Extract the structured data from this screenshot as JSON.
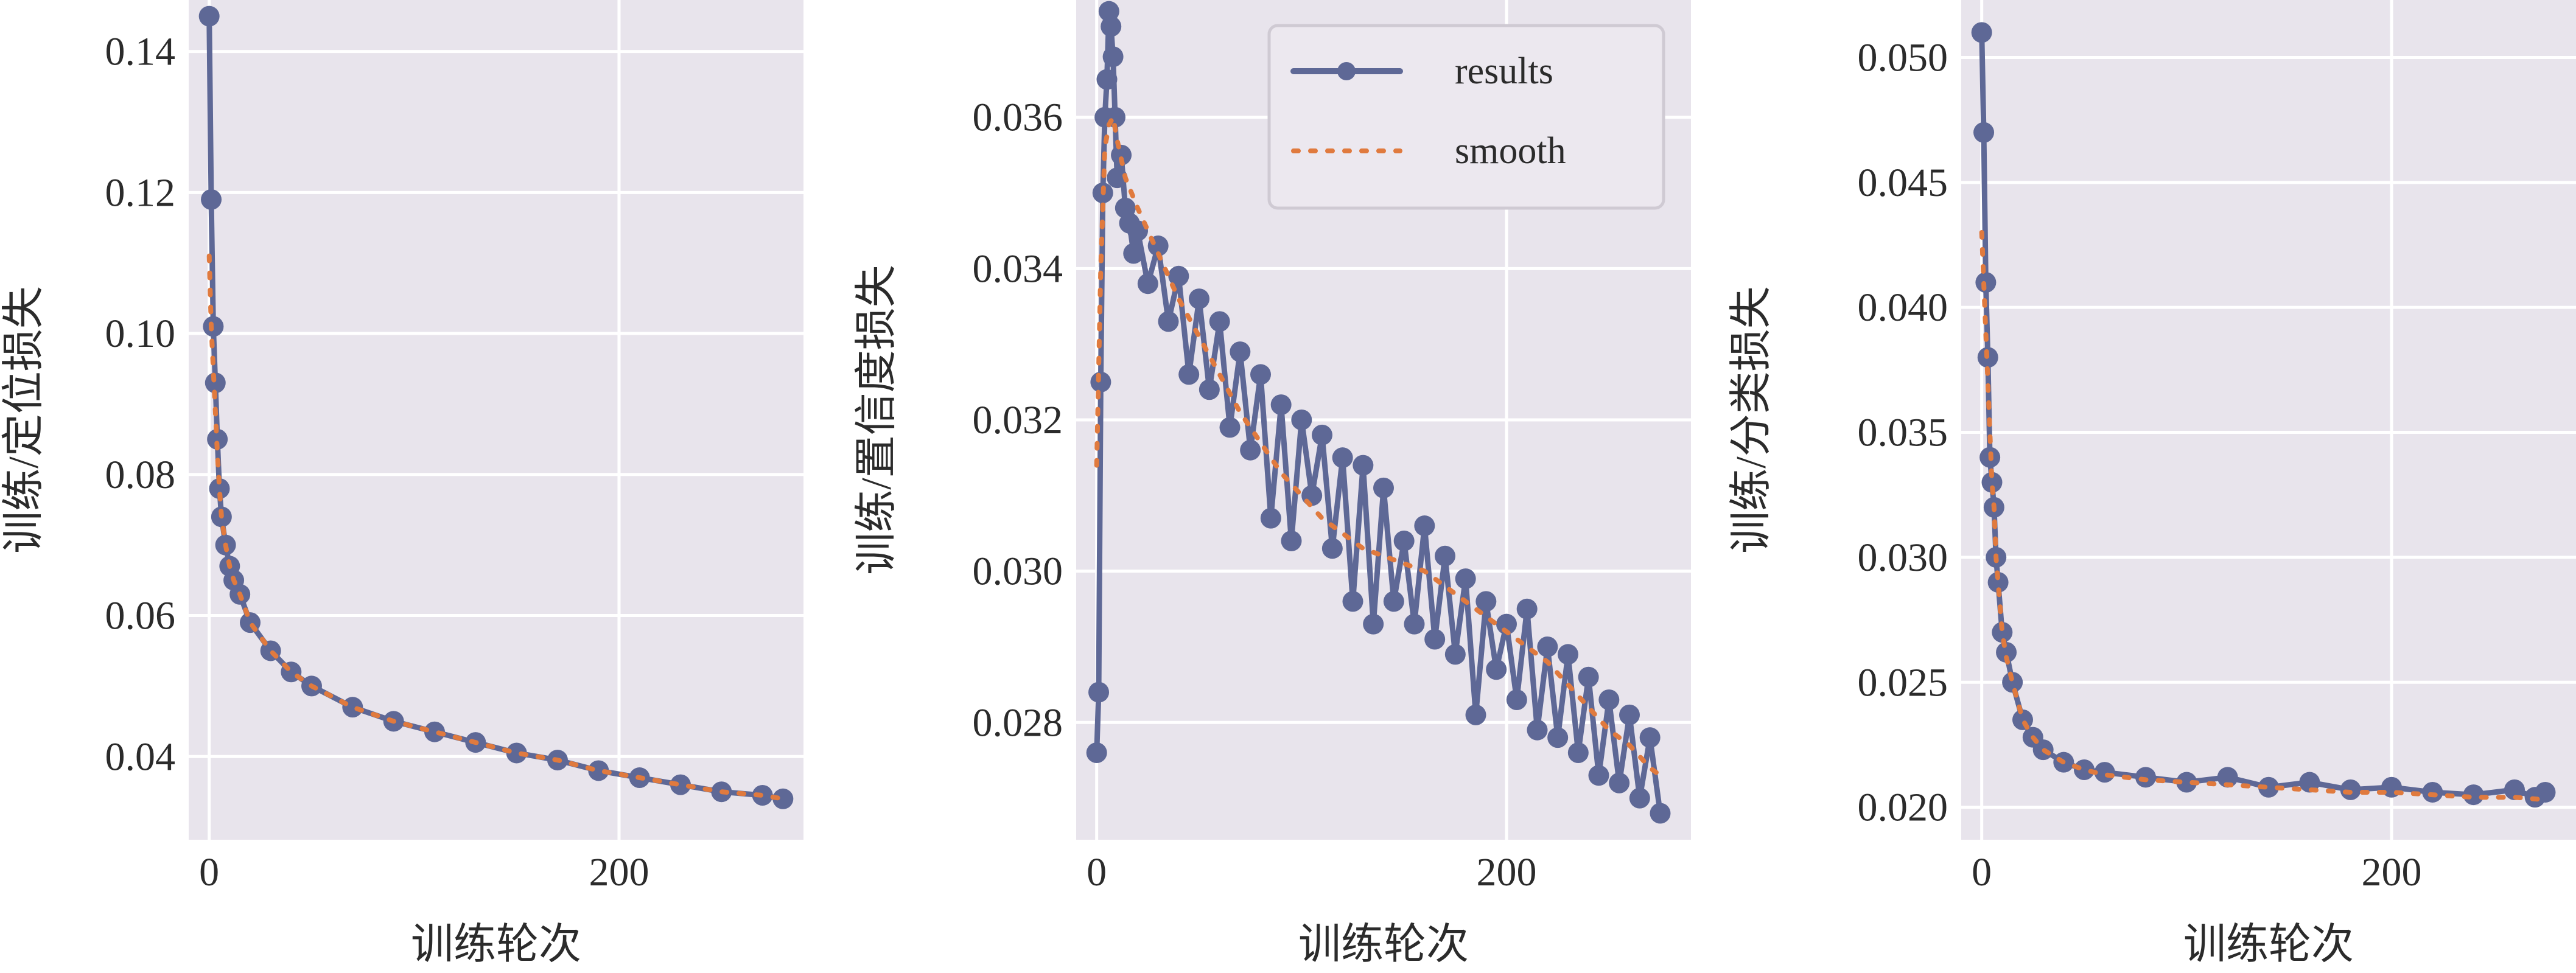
{
  "colors": {
    "plot_bg": "#e8e4ec",
    "grid": "#ffffff",
    "results": "#5e6896",
    "smooth": "#e07a3e",
    "legend_bg": "#ece8ef",
    "legend_border": "#cfcad3"
  },
  "legend": {
    "results": "results",
    "smooth": "smooth"
  },
  "chart_data": [
    {
      "type": "line",
      "title": "",
      "xlabel": "训练轮次",
      "ylabel": "训练/定位损失",
      "xlim": [
        -10,
        290
      ],
      "ylim": [
        0.0282,
        0.1473
      ],
      "xticks": [
        0,
        200
      ],
      "xtick_labels": [
        "0",
        "200"
      ],
      "yticks": [
        0.04,
        0.06,
        0.08,
        0.1,
        0.12,
        0.14
      ],
      "ytick_labels": [
        "0.04",
        "0.06",
        "0.08",
        "0.10",
        "0.12",
        "0.14"
      ],
      "grid": true,
      "legend": "none",
      "series": [
        {
          "name": "results",
          "x": [
            0,
            1,
            2,
            3,
            4,
            5,
            6,
            8,
            10,
            12,
            15,
            20,
            30,
            40,
            50,
            70,
            90,
            110,
            130,
            150,
            170,
            190,
            210,
            230,
            250,
            270,
            280
          ],
          "y": [
            0.145,
            0.119,
            0.101,
            0.093,
            0.085,
            0.078,
            0.074,
            0.07,
            0.067,
            0.065,
            0.063,
            0.059,
            0.055,
            0.052,
            0.05,
            0.047,
            0.045,
            0.0435,
            0.042,
            0.0405,
            0.0395,
            0.038,
            0.037,
            0.036,
            0.035,
            0.0345,
            0.034
          ]
        },
        {
          "name": "smooth",
          "x": [
            0,
            1,
            2,
            3,
            4,
            5,
            6,
            8,
            10,
            12,
            15,
            20,
            30,
            40,
            50,
            70,
            90,
            110,
            130,
            150,
            170,
            190,
            210,
            230,
            250,
            270,
            280
          ],
          "y": [
            0.111,
            0.101,
            0.095,
            0.089,
            0.083,
            0.078,
            0.074,
            0.07,
            0.067,
            0.065,
            0.063,
            0.059,
            0.055,
            0.052,
            0.05,
            0.047,
            0.045,
            0.0435,
            0.042,
            0.0405,
            0.0395,
            0.038,
            0.037,
            0.036,
            0.035,
            0.0345,
            0.034
          ]
        }
      ]
    },
    {
      "type": "line",
      "title": "",
      "xlabel": "训练轮次",
      "ylabel": "训练/置信度损失",
      "xlim": [
        -10,
        290
      ],
      "ylim": [
        0.02645,
        0.03755
      ],
      "xticks": [
        0,
        200
      ],
      "xtick_labels": [
        "0",
        "200"
      ],
      "yticks": [
        0.028,
        0.03,
        0.032,
        0.034,
        0.036
      ],
      "ytick_labels": [
        "0.028",
        "0.030",
        "0.032",
        "0.034",
        "0.036"
      ],
      "grid": true,
      "legend": "top-right",
      "series": [
        {
          "name": "results",
          "x": [
            0,
            1,
            2,
            3,
            4,
            5,
            6,
            7,
            8,
            9,
            10,
            12,
            14,
            16,
            18,
            20,
            25,
            30,
            35,
            40,
            45,
            50,
            55,
            60,
            65,
            70,
            75,
            80,
            85,
            90,
            95,
            100,
            105,
            110,
            115,
            120,
            125,
            130,
            135,
            140,
            145,
            150,
            155,
            160,
            165,
            170,
            175,
            180,
            185,
            190,
            195,
            200,
            205,
            210,
            215,
            220,
            225,
            230,
            235,
            240,
            245,
            250,
            255,
            260,
            265,
            270,
            275
          ],
          "y": [
            0.0276,
            0.0284,
            0.0325,
            0.035,
            0.036,
            0.0365,
            0.0374,
            0.0372,
            0.0368,
            0.036,
            0.0352,
            0.0355,
            0.0348,
            0.0346,
            0.0342,
            0.0345,
            0.0338,
            0.0343,
            0.0333,
            0.0339,
            0.0326,
            0.0336,
            0.0324,
            0.0333,
            0.0319,
            0.0329,
            0.0316,
            0.0326,
            0.0307,
            0.0322,
            0.0304,
            0.032,
            0.031,
            0.0318,
            0.0303,
            0.0315,
            0.0296,
            0.0314,
            0.0293,
            0.0311,
            0.0296,
            0.0304,
            0.0293,
            0.0306,
            0.0291,
            0.0302,
            0.0289,
            0.0299,
            0.0281,
            0.0296,
            0.0287,
            0.0293,
            0.0283,
            0.0295,
            0.0279,
            0.029,
            0.0278,
            0.0289,
            0.0276,
            0.0286,
            0.0273,
            0.0283,
            0.0272,
            0.0281,
            0.027,
            0.0278,
            0.0268
          ]
        },
        {
          "name": "smooth",
          "x": [
            0,
            2,
            4,
            6,
            8,
            10,
            14,
            20,
            30,
            40,
            50,
            60,
            70,
            80,
            90,
            100,
            110,
            120,
            130,
            140,
            150,
            160,
            170,
            180,
            190,
            200,
            210,
            220,
            230,
            240,
            250,
            260,
            270,
            275
          ],
          "y": [
            0.0314,
            0.034,
            0.0356,
            0.0359,
            0.036,
            0.0357,
            0.0352,
            0.0348,
            0.0342,
            0.0336,
            0.0331,
            0.0326,
            0.0321,
            0.0317,
            0.0313,
            0.031,
            0.0307,
            0.0305,
            0.0303,
            0.0302,
            0.0301,
            0.03,
            0.0298,
            0.0296,
            0.0294,
            0.0292,
            0.029,
            0.0288,
            0.0285,
            0.0282,
            0.0279,
            0.0277,
            0.0274,
            0.0273
          ]
        }
      ]
    },
    {
      "type": "line",
      "title": "",
      "xlabel": "训练轮次",
      "ylabel": "训练/分类损失",
      "xlim": [
        -10,
        290
      ],
      "ylim": [
        0.0187,
        0.0523
      ],
      "xticks": [
        0,
        200
      ],
      "xtick_labels": [
        "0",
        "200"
      ],
      "yticks": [
        0.02,
        0.025,
        0.03,
        0.035,
        0.04,
        0.045,
        0.05
      ],
      "ytick_labels": [
        "0.020",
        "0.025",
        "0.030",
        "0.035",
        "0.040",
        "0.045",
        "0.050"
      ],
      "grid": true,
      "legend": "none",
      "series": [
        {
          "name": "results",
          "x": [
            0,
            1,
            2,
            3,
            4,
            5,
            6,
            7,
            8,
            10,
            12,
            15,
            20,
            25,
            30,
            40,
            50,
            60,
            80,
            100,
            120,
            140,
            160,
            180,
            200,
            220,
            240,
            260,
            270,
            275
          ],
          "y": [
            0.051,
            0.047,
            0.041,
            0.038,
            0.034,
            0.033,
            0.032,
            0.03,
            0.029,
            0.027,
            0.0262,
            0.025,
            0.0235,
            0.0228,
            0.0223,
            0.0218,
            0.0215,
            0.0214,
            0.0212,
            0.021,
            0.0212,
            0.0208,
            0.021,
            0.0207,
            0.0208,
            0.0206,
            0.0205,
            0.0207,
            0.0204,
            0.0206
          ]
        },
        {
          "name": "smooth",
          "x": [
            0,
            1,
            2,
            3,
            4,
            5,
            6,
            7,
            8,
            10,
            12,
            15,
            20,
            25,
            30,
            40,
            50,
            60,
            80,
            100,
            120,
            140,
            160,
            180,
            200,
            220,
            240,
            260,
            275
          ],
          "y": [
            0.043,
            0.041,
            0.039,
            0.037,
            0.035,
            0.033,
            0.032,
            0.03,
            0.029,
            0.027,
            0.026,
            0.025,
            0.0235,
            0.0228,
            0.0223,
            0.0218,
            0.0215,
            0.0213,
            0.0211,
            0.021,
            0.0209,
            0.0208,
            0.0207,
            0.0206,
            0.0206,
            0.0205,
            0.0204,
            0.0204,
            0.0203
          ]
        }
      ]
    }
  ]
}
